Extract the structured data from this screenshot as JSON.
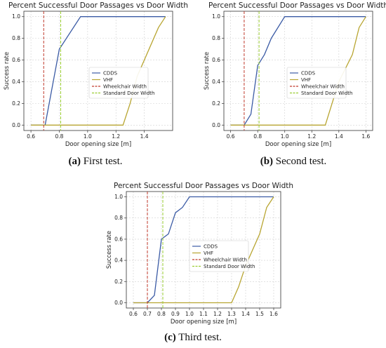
{
  "chart_data": [
    {
      "type": "line",
      "title": "Percent Successful Door Passages vs Door Width",
      "xlabel": "Door opening size [m]",
      "ylabel": "Success rate",
      "xlim": [
        0.55,
        1.6
      ],
      "ylim": [
        -0.05,
        1.05
      ],
      "xticks": [
        "0.6",
        "0.8",
        "1.0",
        "1.2",
        "1.4"
      ],
      "xtick_values": [
        0.6,
        0.8,
        1.0,
        1.2,
        1.4
      ],
      "yticks": [
        "0.0",
        "0.2",
        "0.4",
        "0.6",
        "0.8",
        "1.0"
      ],
      "ytick_values": [
        0.0,
        0.2,
        0.4,
        0.6,
        0.8,
        1.0
      ],
      "grid": true,
      "legend_position": "center",
      "series": [
        {
          "name": "CDDS",
          "color": "#3b5ba5",
          "x": [
            0.6,
            0.7,
            0.8,
            0.95,
            1.55
          ],
          "y": [
            0.0,
            0.0,
            0.7,
            1.0,
            1.0
          ]
        },
        {
          "name": "VHF",
          "color": "#b8a531",
          "x": [
            0.6,
            1.25,
            1.3,
            1.35,
            1.5,
            1.55
          ],
          "y": [
            0.0,
            0.0,
            0.2,
            0.45,
            0.9,
            1.0
          ]
        }
      ],
      "vlines": [
        {
          "name": "Wheelchair Width",
          "x": 0.69,
          "color": "#c0392b"
        },
        {
          "name": "Standard Door Width",
          "x": 0.81,
          "color": "#9acd32"
        }
      ],
      "caption_label": "(a)",
      "caption_text": "First test."
    },
    {
      "type": "line",
      "title": "Percent Successful Door Passages vs Door Width",
      "xlabel": "Door opening size [m]",
      "ylabel": "Success rate",
      "xlim": [
        0.55,
        1.65
      ],
      "ylim": [
        -0.05,
        1.05
      ],
      "xticks": [
        "0.6",
        "0.8",
        "1.0",
        "1.2",
        "1.4",
        "1.6"
      ],
      "xtick_values": [
        0.6,
        0.8,
        1.0,
        1.2,
        1.4,
        1.6
      ],
      "yticks": [
        "0.0",
        "0.2",
        "0.4",
        "0.6",
        "0.8",
        "1.0"
      ],
      "ytick_values": [
        0.0,
        0.2,
        0.4,
        0.6,
        0.8,
        1.0
      ],
      "grid": true,
      "legend_position": "center",
      "series": [
        {
          "name": "CDDS",
          "color": "#3b5ba5",
          "x": [
            0.6,
            0.7,
            0.75,
            0.8,
            0.85,
            0.9,
            1.0,
            1.6
          ],
          "y": [
            0.0,
            0.0,
            0.1,
            0.55,
            0.65,
            0.8,
            1.0,
            1.0
          ]
        },
        {
          "name": "VHF",
          "color": "#b8a531",
          "x": [
            0.6,
            1.3,
            1.4,
            1.5,
            1.55,
            1.6
          ],
          "y": [
            0.0,
            0.0,
            0.4,
            0.65,
            0.9,
            1.0
          ]
        }
      ],
      "vlines": [
        {
          "name": "Wheelchair Width",
          "x": 0.7,
          "color": "#c0392b"
        },
        {
          "name": "Standard Door Width",
          "x": 0.81,
          "color": "#9acd32"
        }
      ],
      "caption_label": "(b)",
      "caption_text": "Second test."
    },
    {
      "type": "line",
      "title": "Percent Successful Door Passages vs Door Width",
      "xlabel": "Door opening size [m]",
      "ylabel": "Success rate",
      "xlim": [
        0.55,
        1.65
      ],
      "ylim": [
        -0.05,
        1.05
      ],
      "xticks": [
        "0.6",
        "0.7",
        "0.8",
        "0.9",
        "1.0",
        "1.1",
        "1.2",
        "1.3",
        "1.4",
        "1.5",
        "1.6"
      ],
      "xtick_values": [
        0.6,
        0.7,
        0.8,
        0.9,
        1.0,
        1.1,
        1.2,
        1.3,
        1.4,
        1.5,
        1.6
      ],
      "yticks": [
        "0.0",
        "0.2",
        "0.4",
        "0.6",
        "0.8",
        "1.0"
      ],
      "ytick_values": [
        0.0,
        0.2,
        0.4,
        0.6,
        0.8,
        1.0
      ],
      "grid": true,
      "legend_position": "center",
      "series": [
        {
          "name": "CDDS",
          "color": "#3b5ba5",
          "x": [
            0.6,
            0.7,
            0.75,
            0.8,
            0.85,
            0.9,
            0.95,
            1.0,
            1.6
          ],
          "y": [
            0.0,
            0.0,
            0.07,
            0.6,
            0.65,
            0.85,
            0.9,
            1.0,
            1.0
          ]
        },
        {
          "name": "VHF",
          "color": "#b8a531",
          "x": [
            0.6,
            1.3,
            1.35,
            1.4,
            1.5,
            1.55,
            1.6
          ],
          "y": [
            0.0,
            0.0,
            0.15,
            0.35,
            0.65,
            0.9,
            1.0
          ]
        }
      ],
      "vlines": [
        {
          "name": "Wheelchair Width",
          "x": 0.7,
          "color": "#c0392b"
        },
        {
          "name": "Standard Door Width",
          "x": 0.81,
          "color": "#9acd32"
        }
      ],
      "caption_label": "(c)",
      "caption_text": "Third test."
    }
  ]
}
